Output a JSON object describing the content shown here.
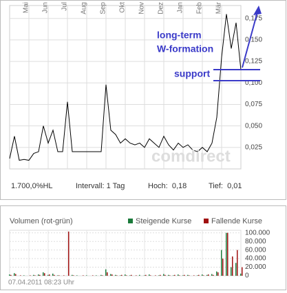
{
  "chart_data": [
    {
      "type": "line",
      "name": "price",
      "color": "#000000",
      "categories": [
        null,
        null,
        null,
        null,
        "Mai",
        null,
        null,
        null,
        "Jun",
        null,
        null,
        null,
        "Jul",
        null,
        null,
        null,
        "Aug",
        null,
        null,
        null,
        "Sep",
        null,
        null,
        null,
        "Okt",
        null,
        null,
        null,
        "Nov",
        null,
        null,
        null,
        "Dez",
        null,
        null,
        null,
        "Jan",
        null,
        null,
        null,
        "Feb",
        null,
        null,
        null,
        "Mär",
        null,
        null,
        null,
        null
      ],
      "values": [
        0.012,
        0.038,
        0.01,
        0.011,
        0.01,
        0.018,
        0.02,
        0.05,
        0.03,
        0.045,
        0.02,
        0.02,
        0.078,
        0.02,
        0.02,
        0.02,
        0.02,
        0.02,
        0.02,
        0.02,
        0.098,
        0.045,
        0.04,
        0.03,
        0.035,
        0.03,
        0.028,
        0.03,
        0.025,
        0.035,
        0.03,
        0.025,
        0.038,
        0.028,
        0.022,
        0.03,
        0.025,
        0.028,
        0.022,
        0.02,
        0.025,
        0.02,
        0.03,
        0.06,
        0.13,
        0.18,
        0.14,
        0.17,
        0.115
      ],
      "ylim": [
        0,
        0.19
      ],
      "yticks": [
        {
          "value": 0.025,
          "label": "0,025"
        },
        {
          "value": 0.05,
          "label": "0,050"
        },
        {
          "value": 0.075,
          "label": "0,075"
        },
        {
          "value": 0.1,
          "label": "0,100"
        },
        {
          "value": 0.125,
          "label": "0,125"
        },
        {
          "value": 0.15,
          "label": "0,150"
        },
        {
          "value": 0.175,
          "label": "0,175"
        }
      ],
      "grid": true,
      "watermark": "comdirect",
      "annotations": [
        "long-term",
        "W-formation",
        "support"
      ],
      "stats": [
        "1.700,0%HL",
        "Intervall: 1 Tag",
        "Hoch:  0,18",
        "Tief:  0,01"
      ]
    },
    {
      "type": "bar",
      "title": "Volumen (rot-grün)",
      "series": [
        {
          "name": "Steigende Kurse",
          "color": "#1a7a3a",
          "values": [
            3000,
            6000,
            0,
            1000,
            0,
            2000,
            3000,
            8000,
            2000,
            5000,
            1000,
            0,
            0,
            2000,
            1000,
            0,
            1000,
            0,
            1000,
            2000,
            15000,
            4000,
            2000,
            1000,
            3000,
            1000,
            0,
            2000,
            1000,
            3000,
            0,
            1000,
            4000,
            2000,
            1000,
            3000,
            1000,
            2000,
            0,
            1000,
            3000,
            2000,
            4000,
            10000,
            60000,
            100000,
            20000,
            30000,
            5000
          ]
        },
        {
          "name": "Fallende Kurse",
          "color": "#a01010",
          "values": [
            2000,
            4000,
            1000,
            0,
            1000,
            1000,
            2000,
            6000,
            3000,
            2000,
            1000,
            1000,
            103000,
            1000,
            0,
            1000,
            0,
            1000,
            0,
            1000,
            8000,
            3000,
            1000,
            2000,
            1000,
            2000,
            1000,
            0,
            2000,
            1000,
            1000,
            2000,
            2000,
            1000,
            2000,
            1000,
            2000,
            1000,
            1000,
            2000,
            1000,
            3000,
            2000,
            8000,
            40000,
            100000,
            45000,
            60000,
            20000
          ]
        }
      ],
      "ylim": [
        0,
        106000
      ],
      "yticks": [
        0,
        {
          "value": 20000,
          "label": "20.000"
        },
        {
          "value": 40000,
          "label": "40.000"
        },
        {
          "value": 60000,
          "label": "60.000"
        },
        {
          "value": 80000,
          "label": "80.000"
        },
        {
          "value": 100000,
          "label": "100.000"
        }
      ],
      "timestamp": "07.04.2011 08:23 Uhr"
    }
  ]
}
